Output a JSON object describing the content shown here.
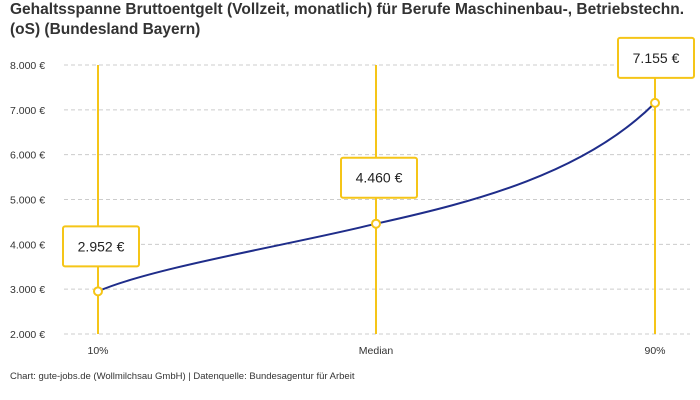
{
  "chart_data": {
    "type": "line",
    "title": "Gehaltsspanne Bruttoentgelt (Vollzeit, monatlich) für Berufe Maschinenbau-, Betriebstechn.(oS) (Bundesland Bayern)",
    "categories": [
      "10%",
      "Median",
      "90%"
    ],
    "values": [
      2952,
      4460,
      7155
    ],
    "data_labels": [
      "2.952 €",
      "4.460 €",
      "7.155 €"
    ],
    "ylim": [
      2000,
      8000
    ],
    "yticks": [
      2000,
      3000,
      4000,
      5000,
      6000,
      7000,
      8000
    ],
    "ytick_labels": [
      "2.000 €",
      "3.000 €",
      "4.000 €",
      "5.000 €",
      "6.000 €",
      "7.000 €",
      "8.000 €"
    ],
    "grid": "horizontal dashed",
    "colors": {
      "line": "#1f2d8a",
      "marker": "#f5c518",
      "grid": "#cccccc"
    }
  },
  "footer": "Chart: gute-jobs.de (Wollmilchsau GmbH) | Datenquelle: Bundesagentur für Arbeit"
}
